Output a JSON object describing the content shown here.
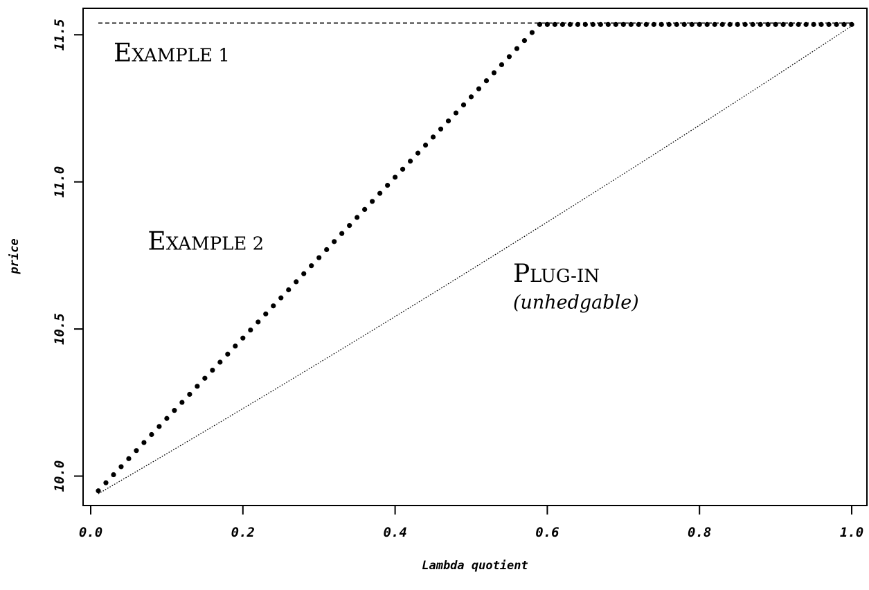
{
  "chart_data": {
    "type": "line",
    "title": "",
    "xlabel": "Lambda quotient",
    "ylabel": "price",
    "xlim": [
      -0.01,
      1.02
    ],
    "ylim": [
      9.9,
      11.59
    ],
    "grid": false,
    "x_ticks": [
      {
        "value": 0.0,
        "label": "0.0"
      },
      {
        "value": 0.2,
        "label": "0.2"
      },
      {
        "value": 0.4,
        "label": "0.4"
      },
      {
        "value": 0.6,
        "label": "0.6"
      },
      {
        "value": 0.8,
        "label": "0.8"
      },
      {
        "value": 1.0,
        "label": "1.0"
      }
    ],
    "y_ticks": [
      {
        "value": 10.0,
        "label": "10.0"
      },
      {
        "value": 10.5,
        "label": "10.5"
      },
      {
        "value": 11.0,
        "label": "11.0"
      },
      {
        "value": 11.5,
        "label": "11.5"
      }
    ],
    "series": [
      {
        "name": "Example 1",
        "style": "dashed",
        "x_range": [
          0.01,
          1.0
        ],
        "y": 11.54
      },
      {
        "name": "Example 2",
        "style": "dots",
        "x_start": 0.01,
        "x_step": 0.01,
        "x_end": 1.0,
        "y_start": 9.95,
        "x_kink": 0.59,
        "y_plateau": 11.535
      },
      {
        "name": "Plug-in (unhedgable)",
        "style": "dotted",
        "x": [
          0.01,
          1.0
        ],
        "y": [
          9.94,
          11.53
        ],
        "curvature": 0.1
      }
    ],
    "annotations": [
      {
        "id": "example1",
        "big": [
          "E",
          "XAMPLE 1"
        ],
        "x": 0.03,
        "y": 11.41
      },
      {
        "id": "example2",
        "big": [
          "E",
          "XAMPLE 2"
        ],
        "x": 0.075,
        "y": 10.77
      },
      {
        "id": "plugin",
        "big": [
          "P",
          "LUG-IN"
        ],
        "x": 0.555,
        "y": 10.66
      },
      {
        "id": "unhedgable",
        "italic": "(unhedgable)",
        "x": 0.555,
        "y": 10.57
      }
    ]
  }
}
